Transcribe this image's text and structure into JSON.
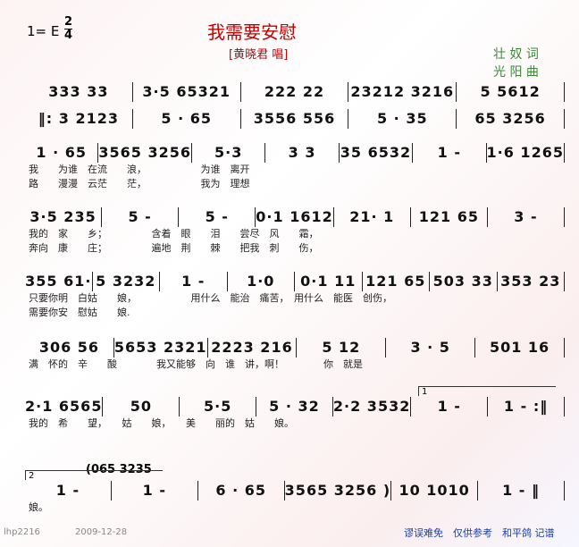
{
  "header": {
    "key": "1= E",
    "time_top": "2",
    "time_bottom": "4",
    "title": "我需要安慰",
    "singer": "[黄晓君 唱]",
    "lyricist": "壮 奴 词",
    "composer": "光 阳 曲"
  },
  "rows": [
    {
      "measures": [
        "333 33",
        "3·5 65321",
        "222 22",
        "23212 3216",
        "5 5612"
      ],
      "lyrics": []
    },
    {
      "measures": [
        "‖: 3 2123",
        "5 · 65",
        "3556 556",
        "5 · 35",
        "65 3256"
      ],
      "lyrics": []
    },
    {
      "measures": [
        "1 · 65",
        "3565 3256",
        "5·3",
        "3 3",
        "35 6532",
        "1 -",
        "1·6 1265"
      ],
      "lyrics": [
        "我　　为谁　在流　　浪，　　　　　　为谁　离开",
        "路　　漫漫　云茫　　茫，　　　　　　我为　理想"
      ]
    },
    {
      "measures": [
        "3·5 235",
        "5 -",
        "5 -",
        "0·1 1612",
        "21· 1",
        "121 65",
        "3 -"
      ],
      "lyrics": [
        "我的　家　　乡；　　　　　含着　眼　　泪　　尝尽　风　　霜，",
        "奔向　康　　庄；　　　　　遍地　荆　　棘　　把我　刺　　伤，"
      ]
    },
    {
      "measures": [
        "355 61·",
        "5 3232",
        "1 -",
        "1·0",
        "0·1 11",
        "121 65",
        "503 33",
        "353 23"
      ],
      "lyrics": [
        "只要你明　白姑　　娘，　　　　　　用什么　能治　痛苦，　用什么　能医　创伤，",
        "需要你安　慰姑　　娘."
      ]
    },
    {
      "measures": [
        "306 56",
        "5653 2321",
        "2223 216",
        "5 12",
        "3 · 5",
        "501 16"
      ],
      "lyrics": [
        "满　怀的　辛　　酸　　　　我又能够　向　谁　讲，啊！　　　　你　就是"
      ]
    },
    {
      "measures": [
        "2·1 6565",
        "50",
        "5·5",
        "5 · 32",
        "2·2 3532",
        "1 -",
        "1 - :‖"
      ],
      "voltas": [
        "1"
      ],
      "lyrics": [
        "我的　希　　望，　　姑　　娘，　　美　　丽的　姑　　娘。"
      ]
    },
    {
      "pre": "(065 3235",
      "voltas": [
        "2"
      ],
      "measures": [
        "1 -",
        "1 -",
        "6 · 65",
        "3565 3256 )",
        "10 1010",
        "1 - ‖"
      ],
      "lyrics": [
        "娘。"
      ]
    }
  ],
  "footer": {
    "id": "lhp2216",
    "date": "2009-12-28",
    "note": "谬误难免　仅供参考　和平鸽 记谱"
  }
}
